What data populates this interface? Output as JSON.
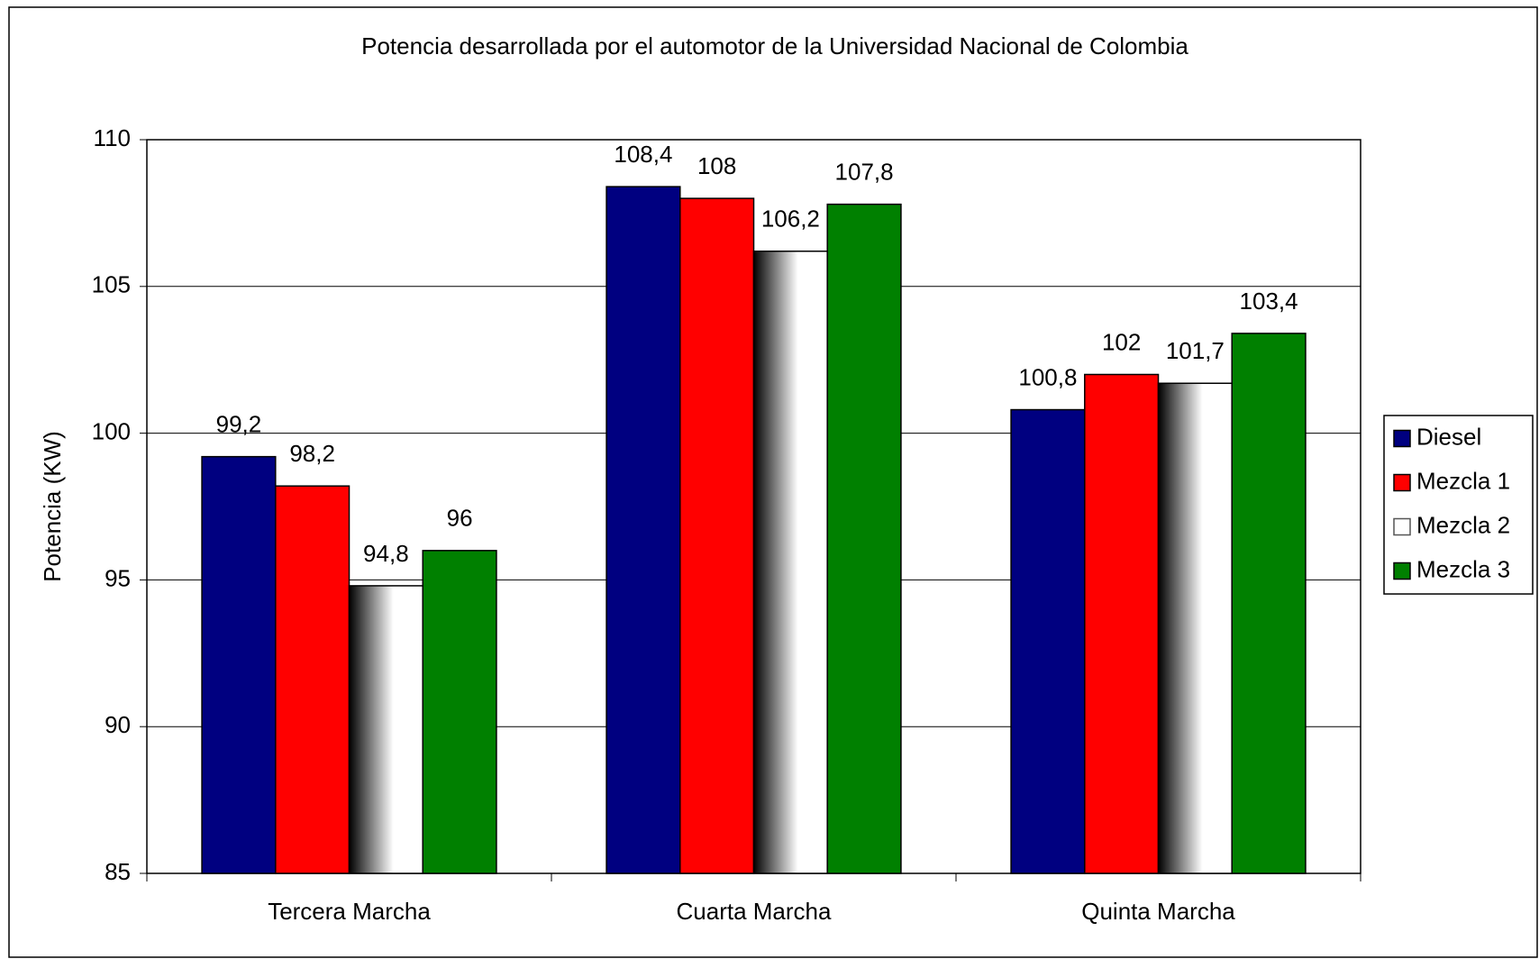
{
  "chart_data": {
    "type": "bar",
    "title": "Potencia desarrollada por el automotor de la Universidad Nacional de Colombia",
    "y_label": "Potencia (KW)",
    "categories": [
      "Tercera Marcha",
      "Cuarta Marcha",
      "Quinta Marcha"
    ],
    "series": [
      {
        "name": "Diesel",
        "color": "#000080",
        "values": [
          99.2,
          108.4,
          100.8
        ],
        "value_labels": [
          "99,2",
          "108,4",
          "100,8"
        ]
      },
      {
        "name": "Mezcla 1",
        "color": "#ff0000",
        "values": [
          98.2,
          108,
          102
        ],
        "value_labels": [
          "98,2",
          "108",
          "102"
        ]
      },
      {
        "name": "Mezcla 2",
        "color": "#ffffff",
        "fill_style": "gradient",
        "values": [
          94.8,
          106.2,
          101.7
        ],
        "value_labels": [
          "94,8",
          "106,2",
          "101,7"
        ]
      },
      {
        "name": "Mezcla 3",
        "color": "#008000",
        "values": [
          96,
          107.8,
          103.4
        ],
        "value_labels": [
          "96",
          "107,8",
          "103,4"
        ]
      }
    ],
    "ylim": [
      85,
      110
    ],
    "yticks": [
      85,
      90,
      95,
      100,
      105,
      110
    ],
    "grid": true,
    "legend": "right"
  }
}
